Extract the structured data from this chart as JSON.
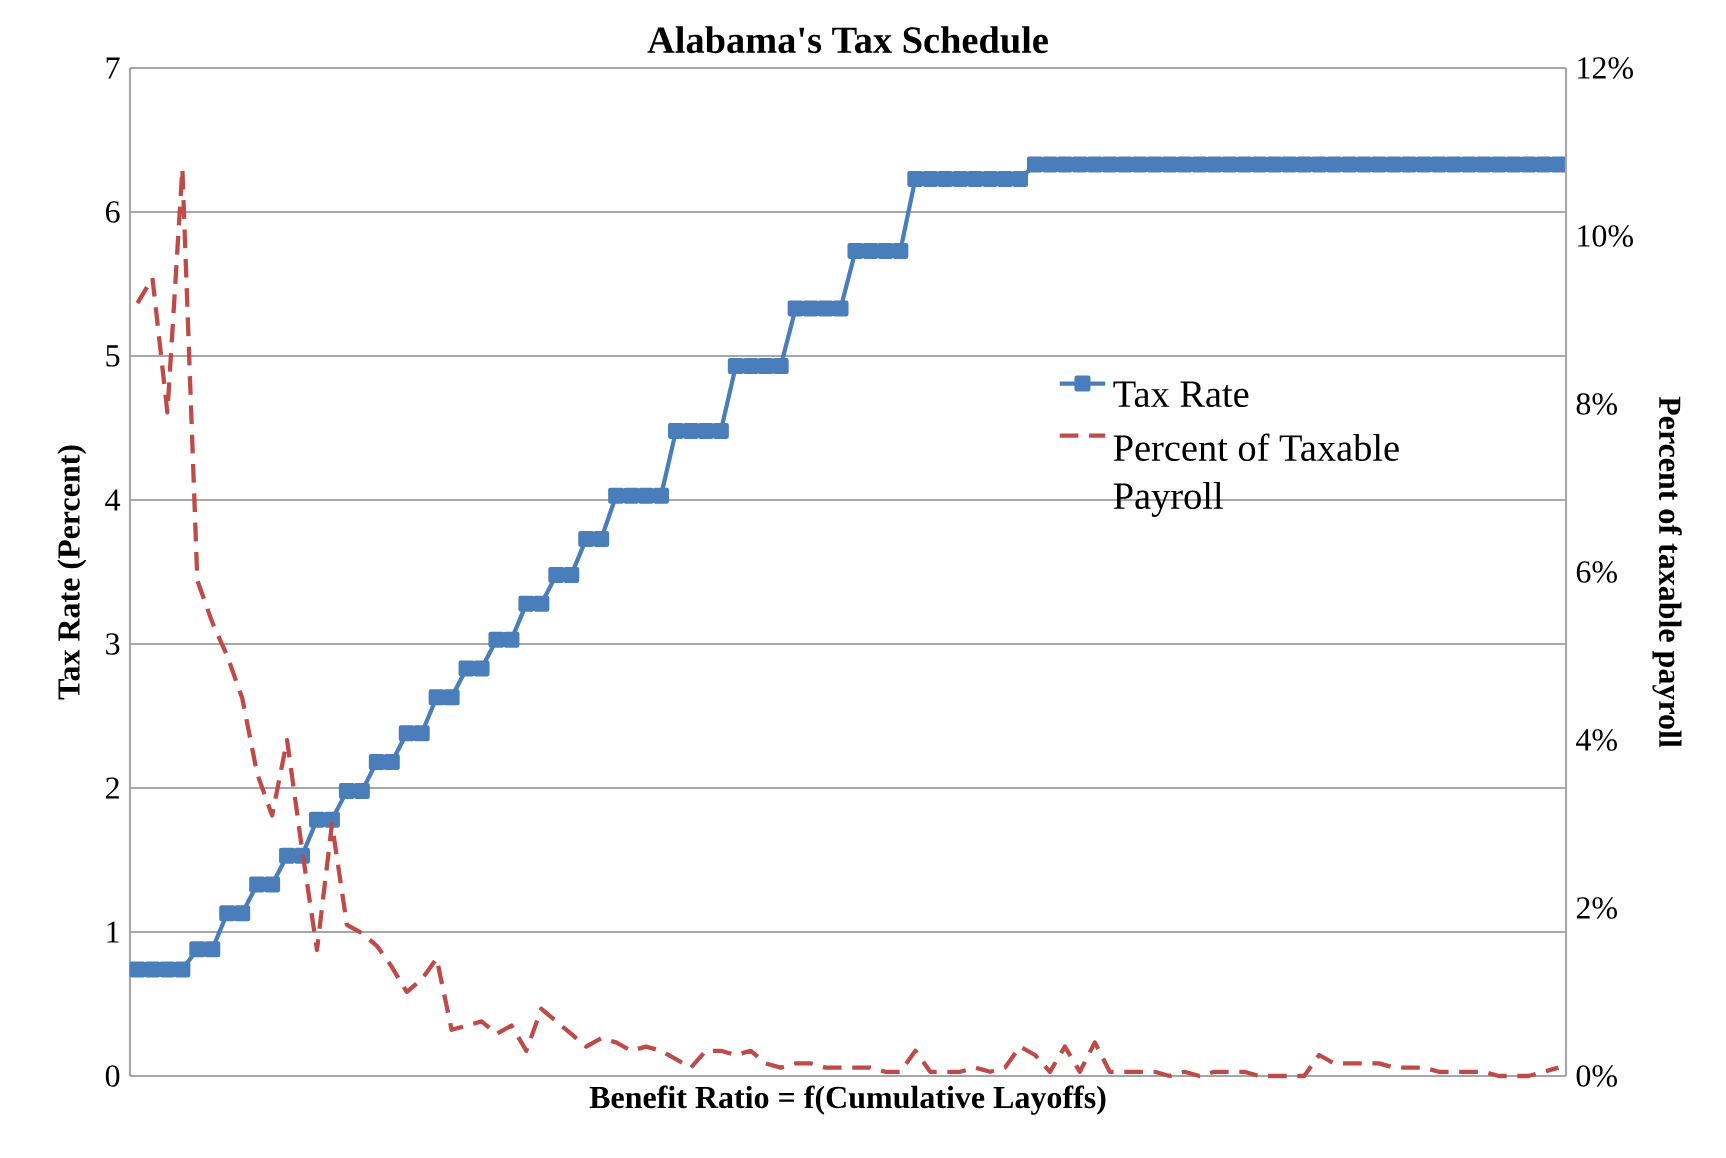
{
  "chart_data": {
    "type": "line",
    "title": "Alabama's Tax Schedule",
    "xlabel": "Benefit Ratio = f(Cumulative Layoffs)",
    "ylabel": "Tax Rate (Percent)",
    "y2label": "Percent of taxable payroll",
    "categories": [
      null,
      null,
      null,
      null,
      null,
      null,
      null,
      null,
      null,
      null,
      null,
      null,
      null,
      null,
      null,
      null,
      null,
      null,
      null,
      null,
      null,
      null,
      null,
      null,
      null,
      null,
      null,
      null,
      null,
      null,
      null,
      null,
      null,
      null,
      null,
      null,
      null,
      null,
      null,
      null,
      null,
      null,
      null,
      null,
      null,
      null,
      null,
      null,
      null,
      null,
      null,
      null,
      null,
      null,
      null,
      null,
      null,
      null,
      null,
      null,
      null,
      null,
      null,
      null,
      null,
      null,
      null,
      null,
      null,
      null,
      null,
      null,
      null,
      null,
      null,
      null,
      null,
      null,
      null,
      null,
      null,
      null,
      null,
      null,
      null,
      null,
      null,
      null,
      null,
      null,
      null,
      null,
      null,
      null,
      null,
      null
    ],
    "series": [
      {
        "name": "Tax Rate",
        "color": "#4a7ebb",
        "marker": "square",
        "line_style": "solid",
        "values": [
          0.74,
          0.74,
          0.74,
          0.74,
          0.88,
          0.88,
          1.13,
          1.13,
          1.33,
          1.33,
          1.53,
          1.53,
          1.78,
          1.78,
          1.98,
          1.98,
          2.18,
          2.18,
          2.38,
          2.38,
          2.63,
          2.63,
          2.83,
          2.83,
          3.03,
          3.03,
          3.28,
          3.28,
          3.48,
          3.48,
          3.73,
          3.73,
          4.03,
          4.03,
          4.03,
          4.03,
          4.48,
          4.48,
          4.48,
          4.48,
          4.93,
          4.93,
          4.93,
          4.93,
          5.33,
          5.33,
          5.33,
          5.33,
          5.73,
          5.73,
          5.73,
          5.73,
          6.23,
          6.23,
          6.23,
          6.23,
          6.23,
          6.23,
          6.23,
          6.23,
          6.33,
          6.33,
          6.33,
          6.33,
          6.33,
          6.33,
          6.33,
          6.33,
          6.33,
          6.33,
          6.33,
          6.33,
          6.33,
          6.33,
          6.33,
          6.33,
          6.33,
          6.33,
          6.33,
          6.33,
          6.33,
          6.33,
          6.33,
          6.33,
          6.33,
          6.33,
          6.33,
          6.33,
          6.33,
          6.33,
          6.33,
          6.33,
          6.33,
          6.33,
          6.33,
          6.33
        ]
      },
      {
        "name": "Percent of Taxable Payroll",
        "color": "#be4b48",
        "marker": "none",
        "line_style": "dashed",
        "axis": "y2",
        "values": [
          9.2,
          9.5,
          7.9,
          10.8,
          5.9,
          5.4,
          5.0,
          4.5,
          3.6,
          3.1,
          4.0,
          2.7,
          1.5,
          3.0,
          1.8,
          1.7,
          1.55,
          1.3,
          1.0,
          1.15,
          1.4,
          0.55,
          0.6,
          0.65,
          0.5,
          0.6,
          0.3,
          0.8,
          0.65,
          0.5,
          0.35,
          0.45,
          0.4,
          0.3,
          0.35,
          0.3,
          0.2,
          0.1,
          0.3,
          0.3,
          0.25,
          0.3,
          0.15,
          0.1,
          0.15,
          0.15,
          0.1,
          0.1,
          0.1,
          0.1,
          0.05,
          0.05,
          0.3,
          0.05,
          0.05,
          0.05,
          0.1,
          0.05,
          0.1,
          0.35,
          0.25,
          0.05,
          0.35,
          0.05,
          0.4,
          0.05,
          0.05,
          0.05,
          0.05,
          0.0,
          0.05,
          0.0,
          0.05,
          0.05,
          0.05,
          0.0,
          0.0,
          0.0,
          0.0,
          0.25,
          0.15,
          0.15,
          0.15,
          0.15,
          0.1,
          0.1,
          0.1,
          0.05,
          0.05,
          0.05,
          0.05,
          0.0,
          0.0,
          0.0,
          0.05,
          0.1
        ]
      }
    ],
    "ylim": [
      0,
      7
    ],
    "yticks": [
      0,
      1,
      2,
      3,
      4,
      5,
      6,
      7
    ],
    "y2lim": [
      0,
      12
    ],
    "y2ticks": [
      {
        "value": 0,
        "label": "0%"
      },
      {
        "value": 2,
        "label": "2%"
      },
      {
        "value": 4,
        "label": "4%"
      },
      {
        "value": 6,
        "label": "6%"
      },
      {
        "value": 8,
        "label": "8%"
      },
      {
        "value": 10,
        "label": "10%"
      },
      {
        "value": 12,
        "label": "12%"
      }
    ],
    "grid": "y",
    "legend": "right"
  }
}
